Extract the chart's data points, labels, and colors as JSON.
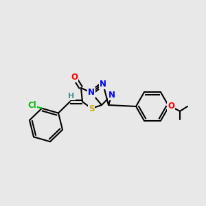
{
  "bg_color": "#e8e8e8",
  "bond_color": "#000000",
  "atom_colors": {
    "O": "#ff0000",
    "N": "#0000ff",
    "S": "#ccaa00",
    "Cl": "#00bb00",
    "H": "#4a9090",
    "C": "#000000"
  },
  "figsize": [
    3.0,
    3.0
  ],
  "dpi": 100
}
